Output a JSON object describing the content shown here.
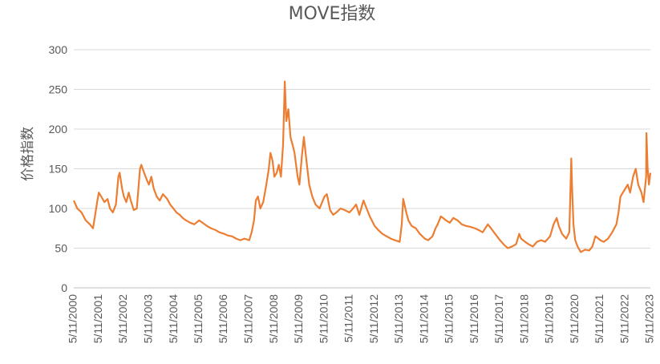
{
  "chart_data": {
    "type": "line",
    "title": "MOVE指数",
    "ylabel": "价格指数",
    "xlabel": "",
    "ylim": [
      0,
      300
    ],
    "yticks": [
      0,
      50,
      100,
      150,
      200,
      250,
      300
    ],
    "grid": true,
    "legend": "none",
    "categories": [
      "5/11/2000",
      "5/11/2001",
      "5/11/2002",
      "5/11/2003",
      "5/11/2004",
      "5/11/2005",
      "5/11/2006",
      "5/11/2007",
      "5/11/2008",
      "5/11/2009",
      "5/11/2010",
      "5/11/2011",
      "5/11/2012",
      "5/11/2013",
      "5/11/2014",
      "5/11/2015",
      "5/11/2016",
      "5/11/2017",
      "5/11/2018",
      "5/11/2019",
      "5/11/2020",
      "5/11/2021",
      "5/11/2022",
      "5/11/2023"
    ],
    "series": [
      {
        "color": "#ED7D31",
        "points": [
          [
            "2000-05-11",
            110
          ],
          [
            "2000-07-01",
            100
          ],
          [
            "2000-09-01",
            95
          ],
          [
            "2000-11-01",
            85
          ],
          [
            "2001-01-01",
            80
          ],
          [
            "2001-02-15",
            75
          ],
          [
            "2001-03-15",
            90
          ],
          [
            "2001-04-20",
            110
          ],
          [
            "2001-05-11",
            120
          ],
          [
            "2001-06-15",
            115
          ],
          [
            "2001-08-01",
            108
          ],
          [
            "2001-09-15",
            112
          ],
          [
            "2001-10-20",
            100
          ],
          [
            "2001-12-01",
            95
          ],
          [
            "2002-01-15",
            105
          ],
          [
            "2002-02-20",
            140
          ],
          [
            "2002-03-10",
            145
          ],
          [
            "2002-04-15",
            125
          ],
          [
            "2002-05-11",
            115
          ],
          [
            "2002-06-15",
            108
          ],
          [
            "2002-07-20",
            120
          ],
          [
            "2002-08-20",
            110
          ],
          [
            "2002-10-01",
            98
          ],
          [
            "2002-11-15",
            100
          ],
          [
            "2003-01-01",
            150
          ],
          [
            "2003-01-20",
            155
          ],
          [
            "2003-03-01",
            145
          ],
          [
            "2003-04-15",
            135
          ],
          [
            "2003-05-11",
            130
          ],
          [
            "2003-06-15",
            140
          ],
          [
            "2003-07-20",
            125
          ],
          [
            "2003-09-01",
            115
          ],
          [
            "2003-10-15",
            110
          ],
          [
            "2003-12-01",
            118
          ],
          [
            "2004-02-01",
            112
          ],
          [
            "2004-03-15",
            105
          ],
          [
            "2004-05-01",
            100
          ],
          [
            "2004-06-15",
            95
          ],
          [
            "2004-08-01",
            92
          ],
          [
            "2004-09-15",
            88
          ],
          [
            "2004-11-01",
            85
          ],
          [
            "2005-01-01",
            82
          ],
          [
            "2005-03-01",
            80
          ],
          [
            "2005-05-11",
            85
          ],
          [
            "2005-07-01",
            82
          ],
          [
            "2005-09-01",
            78
          ],
          [
            "2005-11-01",
            75
          ],
          [
            "2006-01-01",
            73
          ],
          [
            "2006-03-01",
            70
          ],
          [
            "2006-05-11",
            68
          ],
          [
            "2006-07-01",
            66
          ],
          [
            "2006-09-01",
            65
          ],
          [
            "2006-11-01",
            62
          ],
          [
            "2007-01-01",
            60
          ],
          [
            "2007-03-01",
            62
          ],
          [
            "2007-05-11",
            60
          ],
          [
            "2007-06-15",
            70
          ],
          [
            "2007-07-20",
            85
          ],
          [
            "2007-08-15",
            110
          ],
          [
            "2007-09-15",
            115
          ],
          [
            "2007-10-20",
            100
          ],
          [
            "2007-12-01",
            108
          ],
          [
            "2008-01-15",
            130
          ],
          [
            "2008-02-20",
            150
          ],
          [
            "2008-03-15",
            170
          ],
          [
            "2008-04-15",
            160
          ],
          [
            "2008-05-11",
            140
          ],
          [
            "2008-06-15",
            145
          ],
          [
            "2008-07-15",
            155
          ],
          [
            "2008-08-15",
            140
          ],
          [
            "2008-09-15",
            180
          ],
          [
            "2008-10-10",
            260
          ],
          [
            "2008-11-01",
            210
          ],
          [
            "2008-12-01",
            225
          ],
          [
            "2009-01-01",
            190
          ],
          [
            "2009-02-01",
            180
          ],
          [
            "2009-03-01",
            170
          ],
          [
            "2009-04-15",
            140
          ],
          [
            "2009-05-11",
            130
          ],
          [
            "2009-06-15",
            165
          ],
          [
            "2009-07-15",
            190
          ],
          [
            "2009-08-15",
            165
          ],
          [
            "2009-10-01",
            130
          ],
          [
            "2009-11-15",
            115
          ],
          [
            "2010-01-01",
            105
          ],
          [
            "2010-03-01",
            100
          ],
          [
            "2010-05-11",
            115
          ],
          [
            "2010-06-15",
            118
          ],
          [
            "2010-08-01",
            98
          ],
          [
            "2010-09-15",
            92
          ],
          [
            "2010-11-01",
            95
          ],
          [
            "2011-01-01",
            100
          ],
          [
            "2011-03-01",
            98
          ],
          [
            "2011-05-11",
            95
          ],
          [
            "2011-07-01",
            100
          ],
          [
            "2011-08-15",
            105
          ],
          [
            "2011-10-01",
            92
          ],
          [
            "2011-12-01",
            110
          ],
          [
            "2012-01-15",
            100
          ],
          [
            "2012-03-01",
            90
          ],
          [
            "2012-05-11",
            78
          ],
          [
            "2012-07-01",
            73
          ],
          [
            "2012-09-01",
            68
          ],
          [
            "2012-11-01",
            65
          ],
          [
            "2013-01-01",
            62
          ],
          [
            "2013-03-01",
            60
          ],
          [
            "2013-05-11",
            58
          ],
          [
            "2013-06-10",
            80
          ],
          [
            "2013-07-01",
            112
          ],
          [
            "2013-07-20",
            105
          ],
          [
            "2013-08-15",
            95
          ],
          [
            "2013-09-15",
            85
          ],
          [
            "2013-11-01",
            78
          ],
          [
            "2014-01-01",
            75
          ],
          [
            "2014-03-01",
            68
          ],
          [
            "2014-05-11",
            62
          ],
          [
            "2014-07-01",
            60
          ],
          [
            "2014-09-01",
            65
          ],
          [
            "2014-10-15",
            75
          ],
          [
            "2014-11-15",
            80
          ],
          [
            "2015-01-01",
            90
          ],
          [
            "2015-02-01",
            88
          ],
          [
            "2015-03-15",
            85
          ],
          [
            "2015-05-11",
            82
          ],
          [
            "2015-07-01",
            88
          ],
          [
            "2015-09-01",
            85
          ],
          [
            "2015-11-01",
            80
          ],
          [
            "2016-01-01",
            78
          ],
          [
            "2016-03-01",
            77
          ],
          [
            "2016-05-11",
            75
          ],
          [
            "2016-07-01",
            73
          ],
          [
            "2016-09-01",
            70
          ],
          [
            "2016-11-15",
            80
          ],
          [
            "2017-01-01",
            75
          ],
          [
            "2017-03-01",
            68
          ],
          [
            "2017-05-11",
            60
          ],
          [
            "2017-07-01",
            55
          ],
          [
            "2017-09-01",
            50
          ],
          [
            "2017-11-01",
            52
          ],
          [
            "2018-01-01",
            55
          ],
          [
            "2018-02-15",
            68
          ],
          [
            "2018-03-15",
            62
          ],
          [
            "2018-05-11",
            58
          ],
          [
            "2018-07-01",
            55
          ],
          [
            "2018-09-01",
            52
          ],
          [
            "2018-11-01",
            58
          ],
          [
            "2019-01-01",
            60
          ],
          [
            "2019-03-01",
            58
          ],
          [
            "2019-05-11",
            65
          ],
          [
            "2019-07-01",
            80
          ],
          [
            "2019-08-15",
            88
          ],
          [
            "2019-09-15",
            78
          ],
          [
            "2019-11-01",
            68
          ],
          [
            "2020-01-01",
            62
          ],
          [
            "2020-02-15",
            70
          ],
          [
            "2020-03-15",
            163
          ],
          [
            "2020-03-25",
            130
          ],
          [
            "2020-04-15",
            80
          ],
          [
            "2020-05-11",
            60
          ],
          [
            "2020-06-15",
            52
          ],
          [
            "2020-08-01",
            45
          ],
          [
            "2020-10-01",
            48
          ],
          [
            "2020-12-01",
            47
          ],
          [
            "2021-01-15",
            52
          ],
          [
            "2021-03-01",
            65
          ],
          [
            "2021-04-15",
            62
          ],
          [
            "2021-05-11",
            60
          ],
          [
            "2021-07-01",
            58
          ],
          [
            "2021-09-01",
            62
          ],
          [
            "2021-11-01",
            70
          ],
          [
            "2022-01-01",
            80
          ],
          [
            "2022-02-01",
            95
          ],
          [
            "2022-03-01",
            115
          ],
          [
            "2022-05-11",
            125
          ],
          [
            "2022-06-15",
            130
          ],
          [
            "2022-07-20",
            120
          ],
          [
            "2022-09-01",
            140
          ],
          [
            "2022-10-10",
            150
          ],
          [
            "2022-11-15",
            130
          ],
          [
            "2023-01-01",
            120
          ],
          [
            "2023-02-01",
            108
          ],
          [
            "2023-03-10",
            140
          ],
          [
            "2023-03-15",
            195
          ],
          [
            "2023-04-01",
            150
          ],
          [
            "2023-04-20",
            130
          ],
          [
            "2023-05-11",
            145
          ]
        ]
      }
    ]
  }
}
